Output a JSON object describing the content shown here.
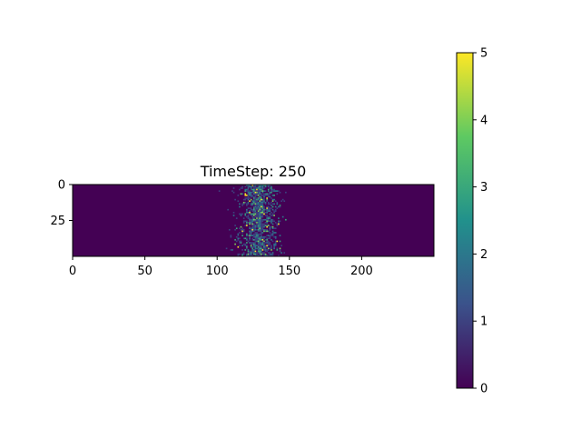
{
  "chart_data": {
    "type": "heatmap",
    "title": "TimeStep: 250",
    "xlabel": "",
    "ylabel": "",
    "grid_shape": {
      "rows": 50,
      "cols": 250
    },
    "xlim": [
      0,
      250
    ],
    "ylim": [
      50,
      0
    ],
    "x_ticks": [
      0,
      50,
      100,
      150,
      200
    ],
    "y_ticks": [
      0,
      25
    ],
    "colormap": "viridis",
    "colormap_stops": [
      "#440154",
      "#3b528b",
      "#21918c",
      "#5ec962",
      "#fde725"
    ],
    "background_value": 0,
    "colorbar": {
      "min": 0,
      "max": 5,
      "ticks": [
        0,
        1,
        2,
        3,
        4,
        5
      ]
    },
    "nonzero_band": {
      "x_range": [
        100,
        150
      ],
      "center_x": 128,
      "peak_value": 5
    }
  }
}
